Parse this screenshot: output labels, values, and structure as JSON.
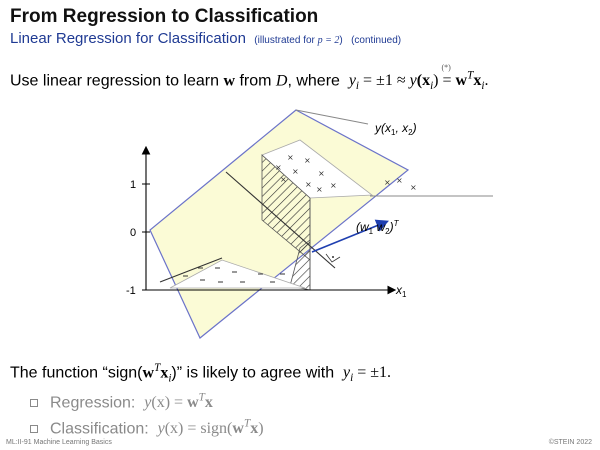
{
  "slide": {
    "title": "From Regression to Classification",
    "subtitle": "Linear Regression for Classification",
    "subtitle_note_pre": "(illustrated for ",
    "subtitle_note_math": "p = 2",
    "subtitle_note_post": ")",
    "subtitle_suffix": "(continued)",
    "intro_pre": "Use linear regression to learn ",
    "intro_w": "w",
    "intro_mid": " from ",
    "intro_D": "D",
    "intro_where": ", where",
    "intro_eq_lhs": "y",
    "intro_eq_sub": "i",
    "intro_eq_pm": " = ±1  ≈  ",
    "intro_eq_y": "y",
    "intro_eq_x": "(x",
    "intro_eq_x_sub": "i",
    "intro_eq_x_close": ")",
    "intro_eq_star": "(*)",
    "intro_eq_eq": "=",
    "intro_eq_wt": "w",
    "intro_eq_T": "T",
    "intro_eq_xi": "x",
    "intro_eq_xi_sub": "i",
    "intro_eq_end": ".",
    "statement_pre": "The function “sign(",
    "statement_w": "w",
    "statement_T": "T",
    "statement_x": "x",
    "statement_sub": "i",
    "statement_close": ")”  is likely to agree with",
    "statement_y": "y",
    "statement_y_sub": "i",
    "statement_eq": " = ±1.",
    "bullet1_label": "Regression:",
    "bullet1_math_y": "y",
    "bullet1_math_x": "(x)",
    "bullet1_math_eq": " = ",
    "bullet1_math_w": "w",
    "bullet1_math_T": "T",
    "bullet1_math_xx": "x",
    "bullet2_label": "Classification:",
    "bullet2_math_y": "y",
    "bullet2_math_x": "(x)",
    "bullet2_math_eq": " = sign(",
    "bullet2_math_w": "w",
    "bullet2_math_T": "T",
    "bullet2_math_xx": "x",
    "bullet2_math_close": ")",
    "footer_left": "ML:II-91    Machine Learning Basics",
    "footer_right": "©STEIN 2022"
  },
  "figure": {
    "tick_1": "1",
    "tick_0": "0",
    "tick_m1": "-1",
    "label_surface": "y(x",
    "label_surface_sub1": "1",
    "label_surface_comma": ", x",
    "label_surface_sub2": "2",
    "label_surface_close": ")",
    "label_normal_open": "(w",
    "label_normal_sub1": "1",
    "label_normal_mid": " w",
    "label_normal_sub2": "2",
    "label_normal_close": ")",
    "label_normal_T": "T",
    "label_x1": "x",
    "label_x1_sub": "1",
    "colors": {
      "plane_fill": "#fbfbd6",
      "plane_edge": "#6b73c9",
      "arrow": "#1f3fb0",
      "axis": "#000000"
    }
  }
}
